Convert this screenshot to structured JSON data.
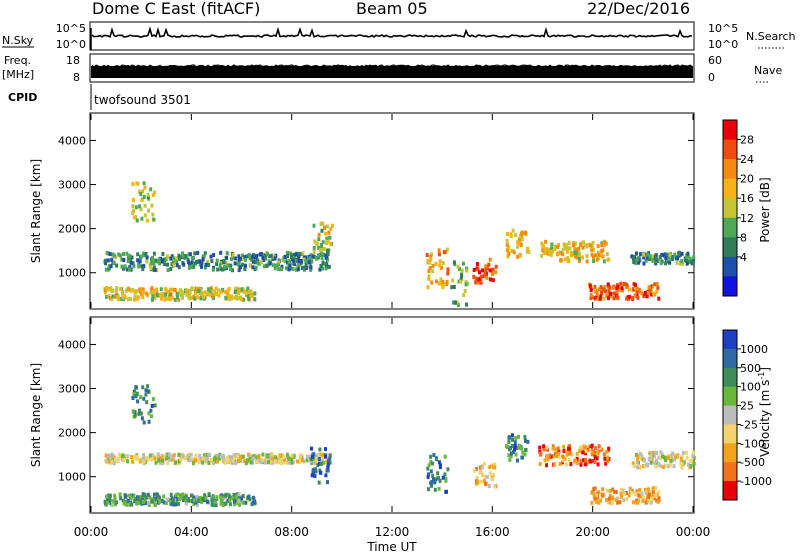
{
  "header": {
    "station": "Dome C East (fitACF)",
    "beam": "Beam 05",
    "date": "22/Dec/2016"
  },
  "status_panels": {
    "nsky_label": "N.Sky",
    "nsky_ticks": [
      "10^5",
      "10^0"
    ],
    "nsearch_label": "N.Search",
    "nsearch_ticks": [
      "10^5",
      "10^0"
    ],
    "freq_label_top": "Freq.",
    "freq_label_unit": "[MHz]",
    "freq_ticks": [
      "18",
      "8"
    ],
    "nave_label": "Nave",
    "nave_ticks": [
      "60",
      "0"
    ],
    "cpid_label": "CPID",
    "cpid_value": "twofsound 3501"
  },
  "chart_data": [
    {
      "type": "heatmap",
      "name": "power",
      "ylabel": "Slant Range [km]",
      "ylim": [
        200,
        4600
      ],
      "yticks": [
        "4000",
        "3000",
        "2000",
        "1000"
      ],
      "colorbar_label": "Power [dB]",
      "colorbar_ticks": [
        "28",
        "24",
        "20",
        "16",
        "12",
        "8",
        "4"
      ],
      "colorbar_colors": [
        "#e8000b",
        "#f04a0c",
        "#f58a0e",
        "#f6b317",
        "#c6c534",
        "#4ea857",
        "#2f7d5b",
        "#1f4fa8",
        "#1212e0"
      ],
      "blobs": [
        {
          "t": [
            0.5,
            6.5
          ],
          "r": [
            430,
            700
          ],
          "level": 0.55
        },
        {
          "t": [
            1.6,
            2.5
          ],
          "r": [
            2200,
            3100
          ],
          "level": 0.5
        },
        {
          "t": [
            0.5,
            9.5
          ],
          "r": [
            1100,
            1500
          ],
          "level": 0.3
        },
        {
          "t": [
            8.7,
            9.6
          ],
          "r": [
            1500,
            2200
          ],
          "level": 0.5
        },
        {
          "t": [
            13.3,
            14.2
          ],
          "r": [
            700,
            1600
          ],
          "level": 0.65
        },
        {
          "t": [
            15.2,
            16.1
          ],
          "r": [
            800,
            1350
          ],
          "level": 0.85
        },
        {
          "t": [
            16.5,
            17.4
          ],
          "r": [
            1400,
            2000
          ],
          "level": 0.6
        },
        {
          "t": [
            17.8,
            20.6
          ],
          "r": [
            1300,
            1750
          ],
          "level": 0.6
        },
        {
          "t": [
            19.8,
            22.6
          ],
          "r": [
            450,
            800
          ],
          "level": 0.8
        },
        {
          "t": [
            21.5,
            24.0
          ],
          "r": [
            1250,
            1500
          ],
          "level": 0.3
        },
        {
          "t": [
            14.3,
            15.0
          ],
          "r": [
            300,
            1300
          ],
          "level": 0.4
        }
      ]
    },
    {
      "type": "heatmap",
      "name": "velocity",
      "xlabel": "Time UT",
      "xticks": [
        "00:00",
        "04:00",
        "08:00",
        "12:00",
        "16:00",
        "20:00",
        "00:00"
      ],
      "ylabel": "Slant Range [km]",
      "ylim": [
        200,
        4600
      ],
      "yticks": [
        "4000",
        "3000",
        "2000",
        "1000"
      ],
      "colorbar_label": "Velocity [m s",
      "colorbar_ticks": [
        "1000",
        "500",
        "100",
        "25",
        "-25",
        "-100",
        "-500",
        "-1000"
      ],
      "colorbar_colors": [
        "#1c3fc4",
        "#2f6aa6",
        "#3d8c5a",
        "#69b83a",
        "#bcbcbc",
        "#f4d36a",
        "#f5a21b",
        "#f2711a",
        "#e8000b"
      ],
      "blobs": [
        {
          "t": [
            0.5,
            6.5
          ],
          "r": [
            400,
            650
          ],
          "level": 0.7
        },
        {
          "t": [
            1.6,
            2.5
          ],
          "r": [
            2200,
            3100
          ],
          "level": 0.75
        },
        {
          "t": [
            0.5,
            9.5
          ],
          "r": [
            1350,
            1550
          ],
          "level": 0.45
        },
        {
          "t": [
            8.7,
            9.6
          ],
          "r": [
            900,
            1700
          ],
          "level": 0.85
        },
        {
          "t": [
            13.3,
            14.2
          ],
          "r": [
            700,
            1600
          ],
          "level": 0.8
        },
        {
          "t": [
            15.2,
            16.1
          ],
          "r": [
            800,
            1350
          ],
          "level": 0.3
        },
        {
          "t": [
            17.8,
            20.6
          ],
          "r": [
            1300,
            1750
          ],
          "level": 0.2
        },
        {
          "t": [
            19.8,
            22.6
          ],
          "r": [
            450,
            800
          ],
          "level": 0.3
        },
        {
          "t": [
            21.5,
            24.0
          ],
          "r": [
            1250,
            1600
          ],
          "level": 0.45
        },
        {
          "t": [
            16.5,
            17.4
          ],
          "r": [
            1400,
            2000
          ],
          "level": 0.75
        }
      ]
    }
  ]
}
